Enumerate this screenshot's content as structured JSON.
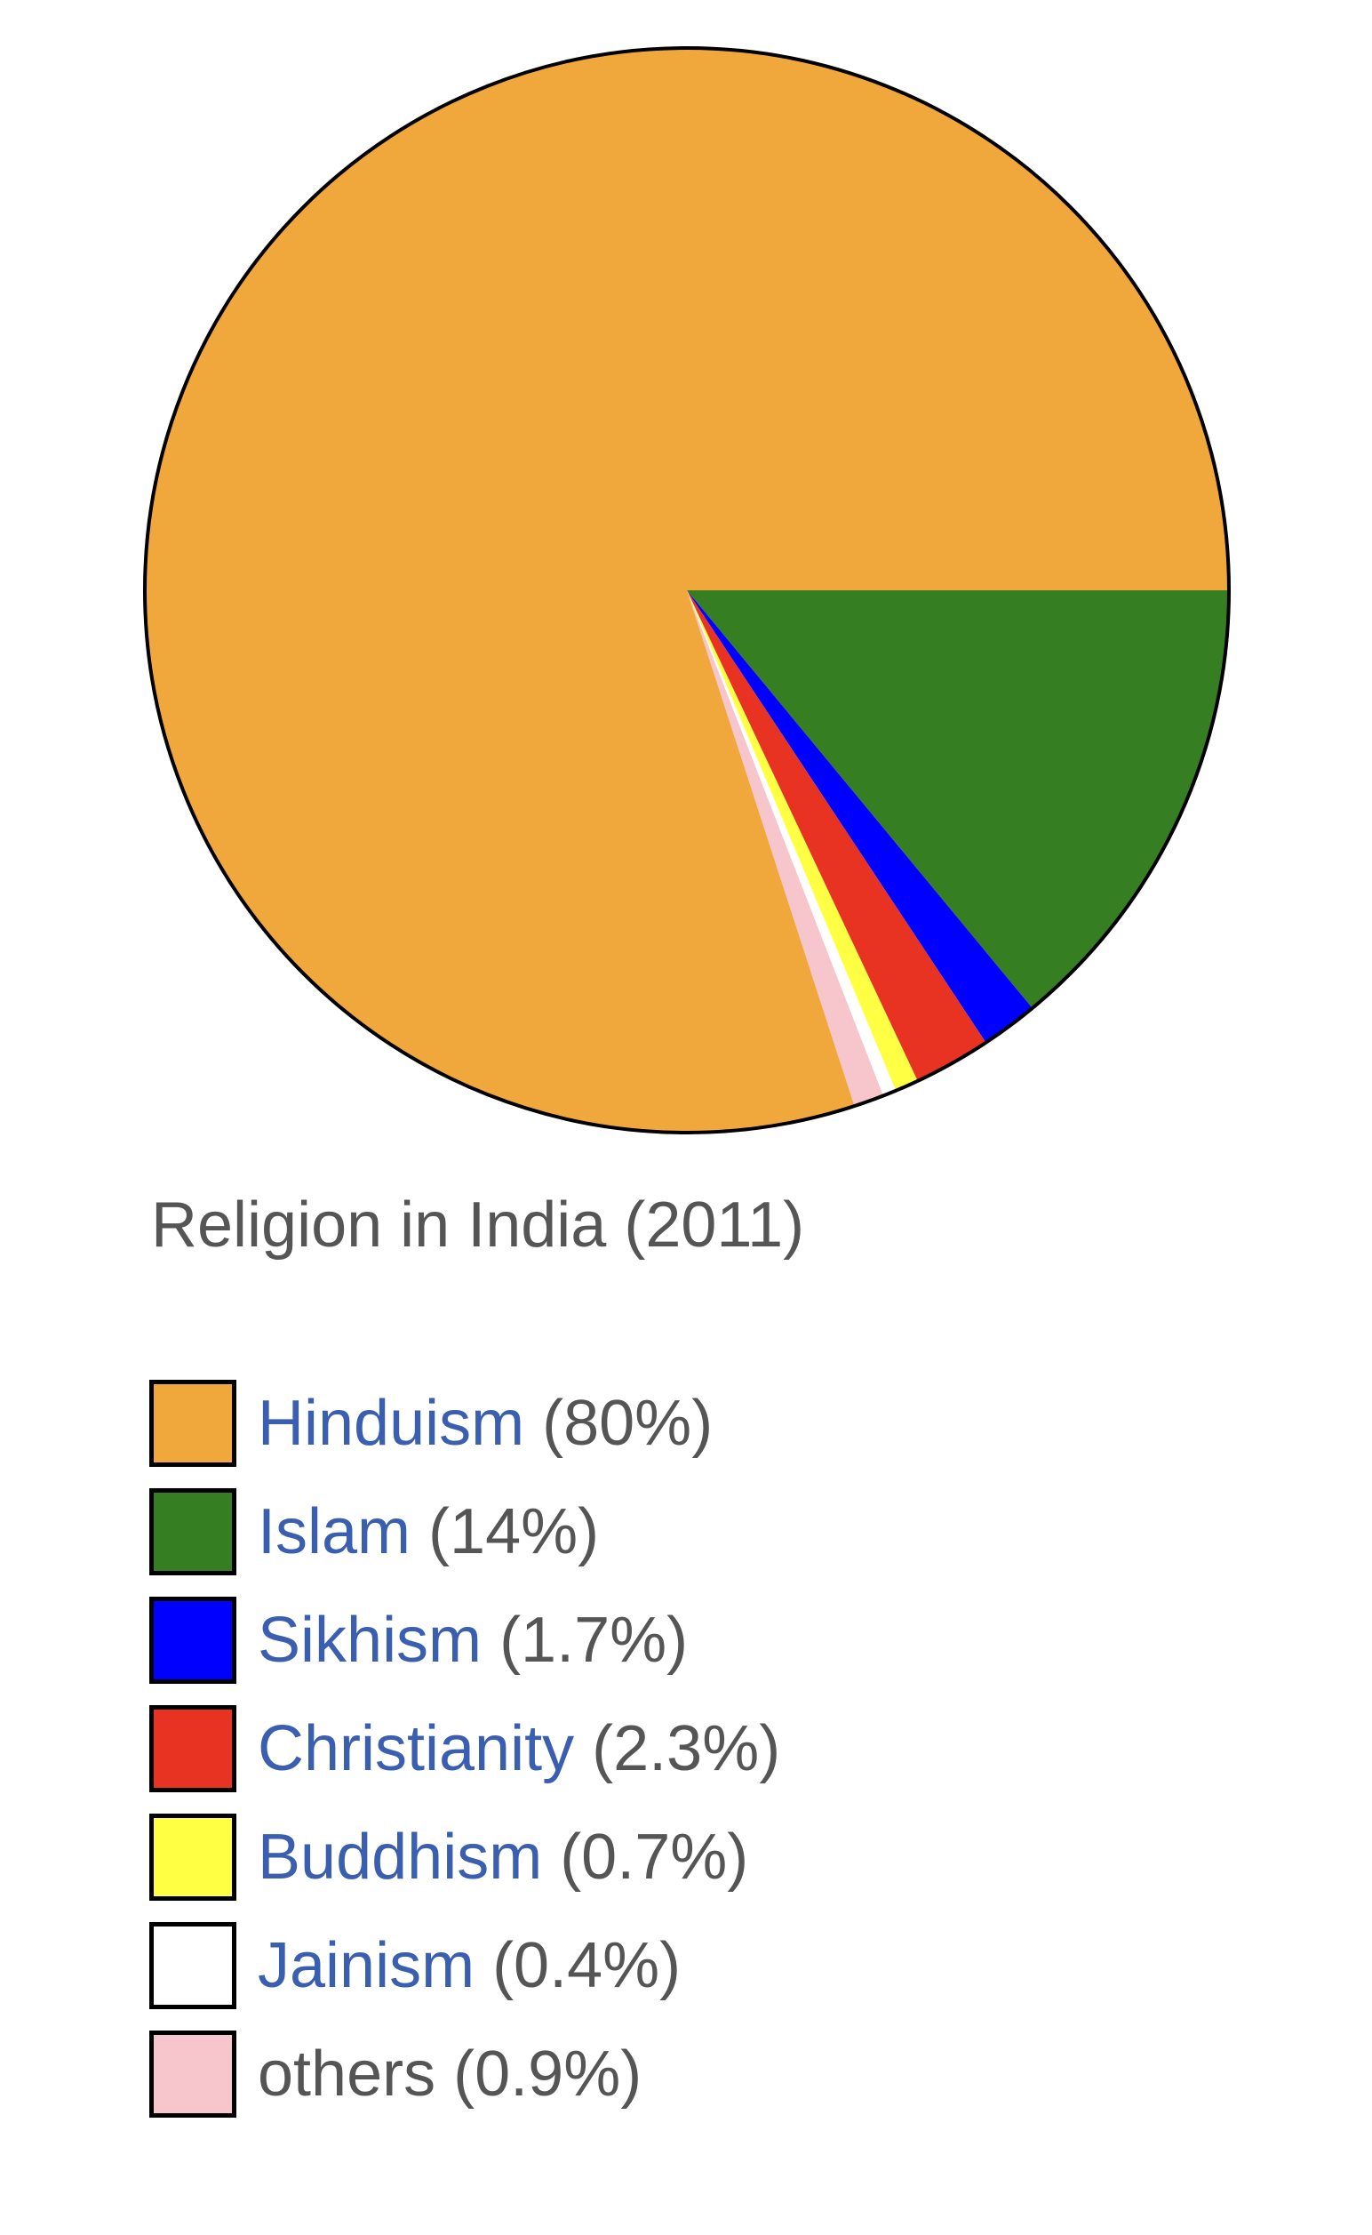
{
  "chart_data": {
    "type": "pie",
    "title": "Religion in India (2011)",
    "slices": [
      {
        "label": "Hinduism",
        "value": 80,
        "value_text": "(80%)",
        "color": "#f0a83c",
        "link": true
      },
      {
        "label": "Islam",
        "value": 14,
        "value_text": "(14%)",
        "color": "#357f22",
        "link": true
      },
      {
        "label": "Sikhism",
        "value": 1.7,
        "value_text": "(1.7%)",
        "color": "#0000ff",
        "link": true
      },
      {
        "label": "Christianity",
        "value": 2.3,
        "value_text": "(2.3%)",
        "color": "#e83323",
        "link": true
      },
      {
        "label": "Buddhism",
        "value": 0.7,
        "value_text": "(0.7%)",
        "color": "#ffff44",
        "link": true
      },
      {
        "label": "Jainism",
        "value": 0.4,
        "value_text": "(0.4%)",
        "color": "#ffffff",
        "link": true
      },
      {
        "label": "others",
        "value": 0.9,
        "value_text": "(0.9%)",
        "color": "#f6c6cc",
        "link": false
      }
    ],
    "legend": "bottom-left"
  },
  "colors": {
    "link_text": "#3a5eb0",
    "plain_text": "#555555",
    "outline": "#000000"
  }
}
